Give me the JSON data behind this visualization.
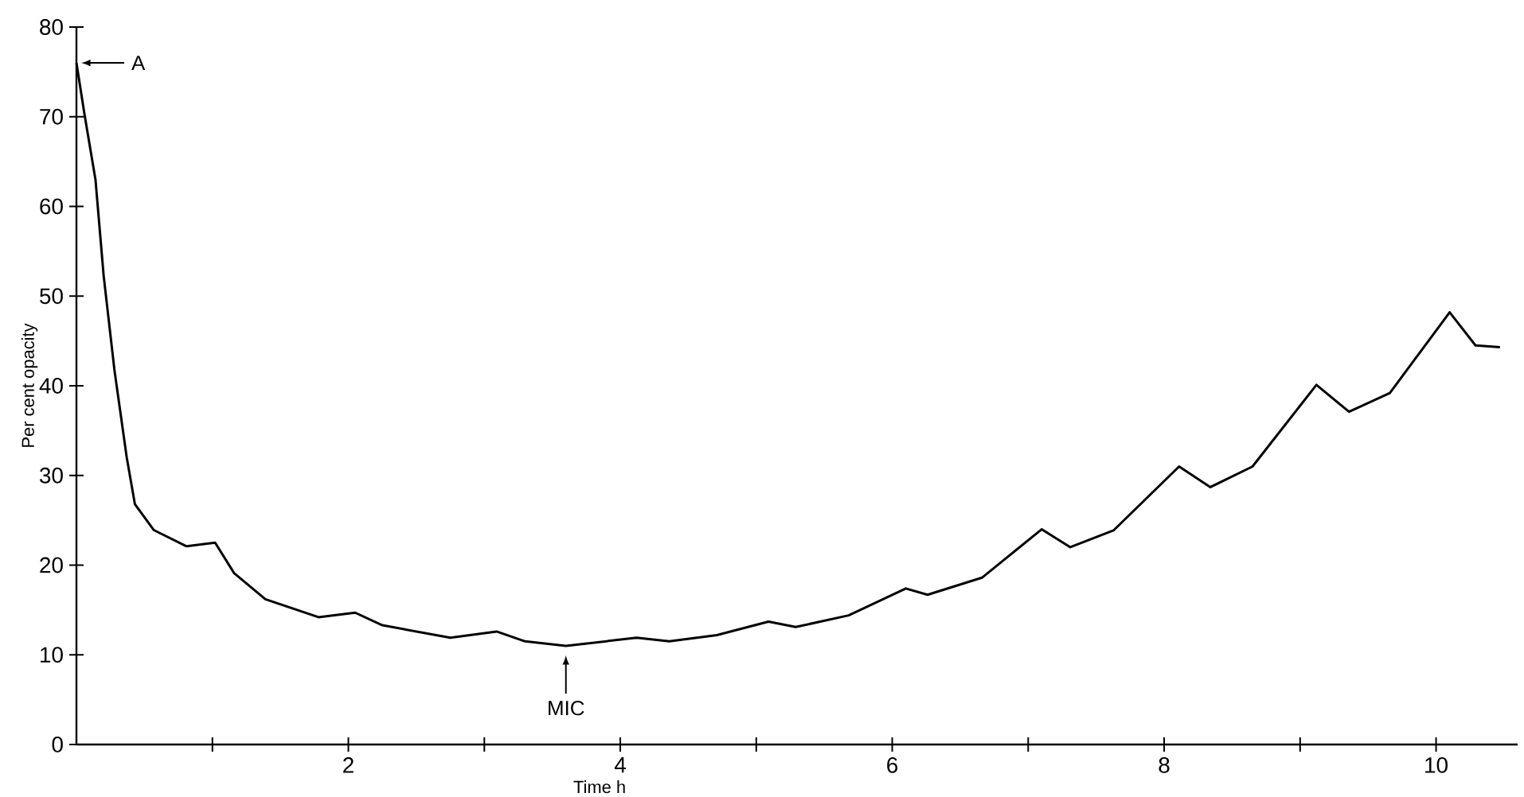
{
  "chart_data": {
    "type": "line",
    "xlabel": "Time  h",
    "ylabel": "Per cent opacity",
    "x": [
      0,
      0.06,
      0.14,
      0.2,
      0.28,
      0.37,
      0.43,
      0.57,
      0.81,
      1.02,
      1.16,
      1.39,
      1.78,
      2.05,
      2.25,
      2.75,
      3.09,
      3.3,
      3.6,
      4.12,
      4.36,
      4.71,
      5.09,
      5.29,
      5.68,
      6.1,
      6.26,
      6.66,
      7.1,
      7.31,
      7.63,
      8.11,
      8.34,
      8.65,
      9.12,
      9.36,
      9.66,
      10.1,
      10.29,
      10.47
    ],
    "series": [
      {
        "color": "#000000",
        "values": [
          76,
          70.2,
          63,
          52.3,
          41.7,
          32,
          26.8,
          23.9,
          22.1,
          22.5,
          19.1,
          16.2,
          14.2,
          14.7,
          13.3,
          11.9,
          12.6,
          11.5,
          11.0,
          11.9,
          11.5,
          12.2,
          13.7,
          13.1,
          14.4,
          17.4,
          16.7,
          18.6,
          24.0,
          22.0,
          23.9,
          31.0,
          28.7,
          31.0,
          40.1,
          37.1,
          39.2,
          48.2,
          44.5,
          44.3
        ]
      }
    ],
    "xlim": [
      0,
      10.6
    ],
    "ylim": [
      0,
      80
    ],
    "xticks": [
      {
        "value": 1,
        "label": null
      },
      2,
      {
        "value": 3,
        "label": null
      },
      4,
      {
        "value": 5,
        "label": null
      },
      6,
      {
        "value": 7,
        "label": null
      },
      8,
      {
        "value": 9,
        "label": null
      },
      10
    ],
    "yticks": [
      0,
      10,
      20,
      30,
      40,
      50,
      60,
      70,
      80
    ],
    "annotations": [
      {
        "text": "A",
        "x": 0,
        "y": 76
      },
      {
        "text": "MIC",
        "x": 3.6,
        "y": 11.0
      }
    ],
    "grid": false,
    "marker": "none",
    "line_style": "solid"
  }
}
